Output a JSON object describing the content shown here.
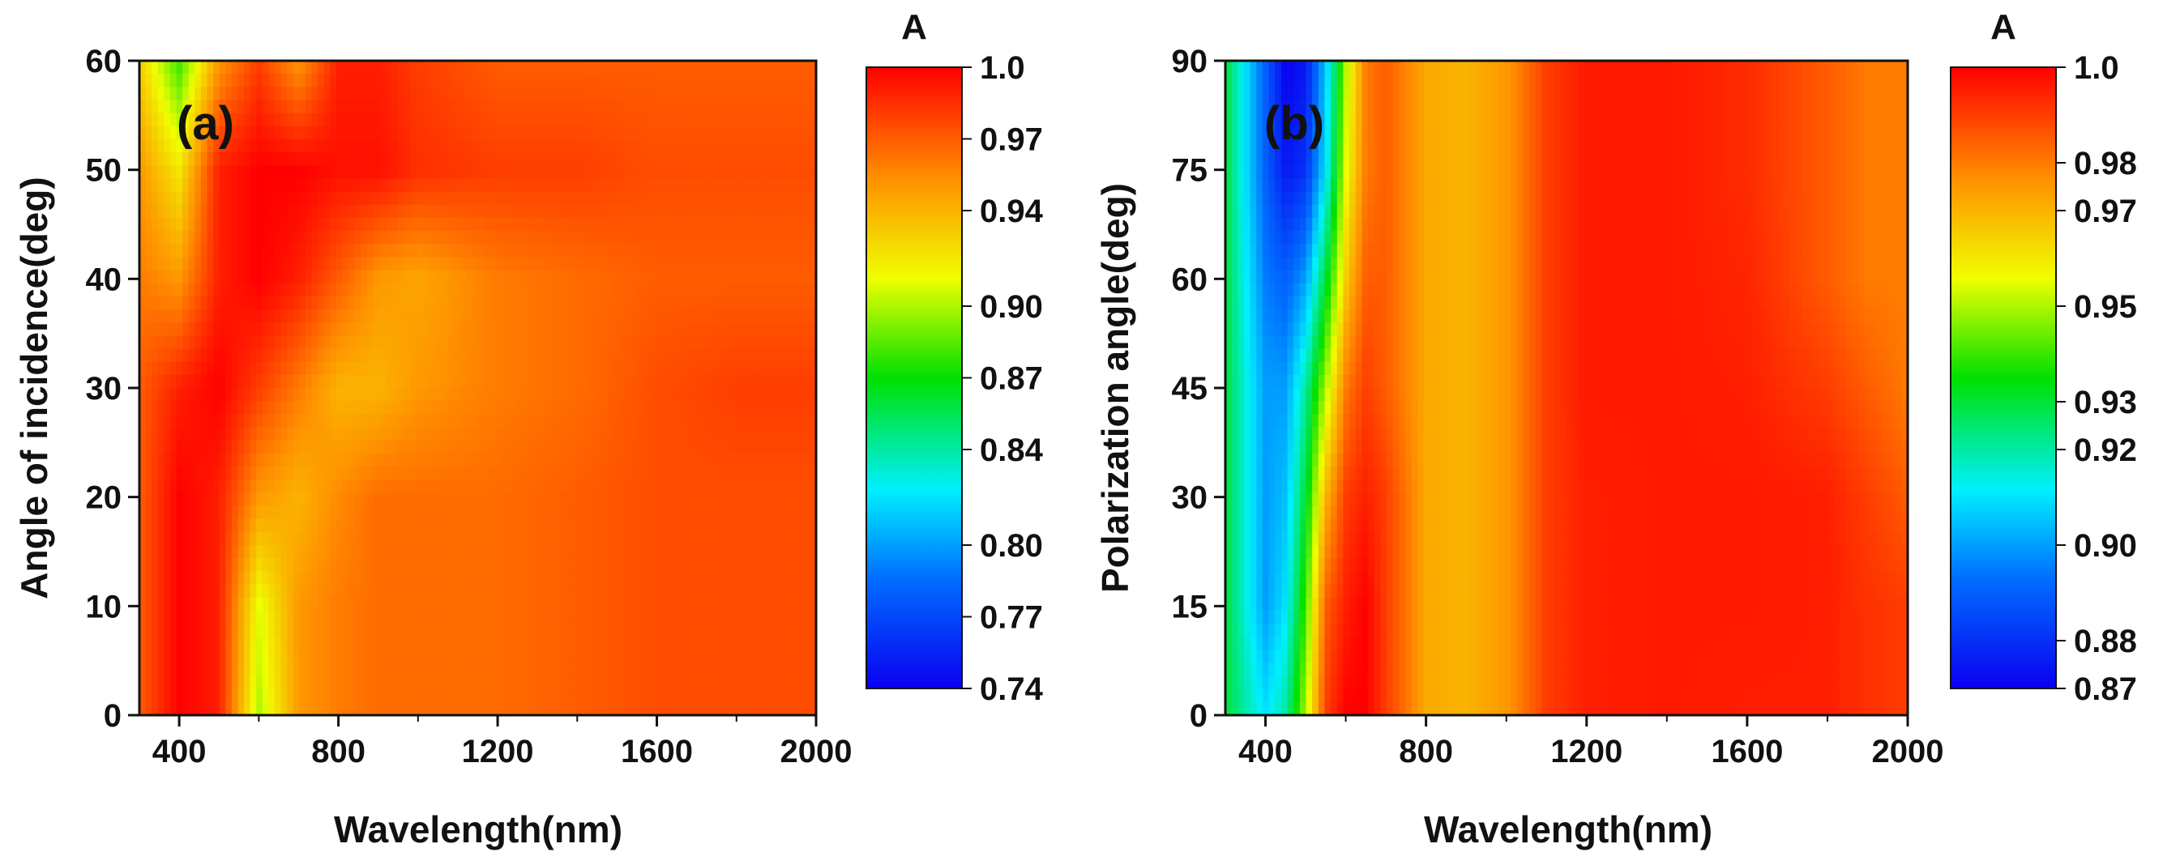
{
  "chart_data": [
    {
      "type": "heatmap",
      "panel_label": "(a)",
      "xlabel": "Wavelength(nm)",
      "ylabel": "Angle of incidence(deg)",
      "xlim": [
        300,
        2000
      ],
      "ylim": [
        0,
        60
      ],
      "x_ticks": [
        400,
        800,
        1200,
        1600,
        2000
      ],
      "x_tick_labels": [
        "400",
        "800",
        "1200",
        "1600",
        "2000"
      ],
      "y_ticks": [
        0,
        10,
        20,
        30,
        40,
        50,
        60
      ],
      "y_tick_labels": [
        "0",
        "10",
        "20",
        "30",
        "40",
        "50",
        "60"
      ],
      "colorbar": {
        "title": "A",
        "min": 0.74,
        "max": 1.0,
        "tick_values": [
          1.0,
          0.97,
          0.94,
          0.9,
          0.87,
          0.84,
          0.8,
          0.77,
          0.74
        ],
        "tick_labels": [
          "1.0",
          "0.97",
          "0.94",
          "0.90",
          "0.87",
          "0.84",
          "0.80",
          "0.77",
          "0.74"
        ]
      },
      "wavelength": [
        300,
        400,
        500,
        600,
        700,
        800,
        900,
        1000,
        1200,
        1400,
        1600,
        1800,
        2000
      ],
      "angle": [
        0,
        10,
        20,
        30,
        40,
        50,
        60
      ],
      "values": [
        [
          0.97,
          1.0,
          0.99,
          0.9,
          0.95,
          0.96,
          0.965,
          0.965,
          0.965,
          0.97,
          0.975,
          0.975,
          0.975
        ],
        [
          0.97,
          1.0,
          0.99,
          0.91,
          0.95,
          0.96,
          0.965,
          0.965,
          0.965,
          0.97,
          0.975,
          0.975,
          0.975
        ],
        [
          0.97,
          1.0,
          0.99,
          0.95,
          0.94,
          0.955,
          0.965,
          0.965,
          0.965,
          0.97,
          0.975,
          0.975,
          0.975
        ],
        [
          0.97,
          0.99,
          1.0,
          0.98,
          0.96,
          0.94,
          0.94,
          0.95,
          0.96,
          0.965,
          0.975,
          0.98,
          0.98
        ],
        [
          0.96,
          0.95,
          0.99,
          1.0,
          0.99,
          0.97,
          0.95,
          0.945,
          0.96,
          0.965,
          0.97,
          0.97,
          0.97
        ],
        [
          0.95,
          0.92,
          0.99,
          1.0,
          1.0,
          0.995,
          0.995,
          0.985,
          0.98,
          0.98,
          0.975,
          0.975,
          0.975
        ],
        [
          0.93,
          0.88,
          0.95,
          0.98,
          0.95,
          0.99,
          0.99,
          0.98,
          0.97,
          0.97,
          0.97,
          0.97,
          0.97
        ]
      ]
    },
    {
      "type": "heatmap",
      "panel_label": "(b)",
      "xlabel": "Wavelength(nm)",
      "ylabel": "Polarization angle(deg)",
      "xlim": [
        300,
        2000
      ],
      "ylim": [
        0,
        90
      ],
      "x_ticks": [
        400,
        800,
        1200,
        1600,
        2000
      ],
      "x_tick_labels": [
        "400",
        "800",
        "1200",
        "1600",
        "2000"
      ],
      "y_ticks": [
        0,
        15,
        30,
        45,
        60,
        75,
        90
      ],
      "y_tick_labels": [
        "0",
        "15",
        "30",
        "45",
        "60",
        "75",
        "90"
      ],
      "colorbar": {
        "title": "A",
        "min": 0.87,
        "max": 1.0,
        "tick_values": [
          1.0,
          0.98,
          0.97,
          0.95,
          0.93,
          0.92,
          0.9,
          0.88,
          0.87
        ],
        "tick_labels": [
          "1.0",
          "0.98",
          "0.97",
          "0.95",
          "0.93",
          "0.92",
          "0.90",
          "0.88",
          "0.87"
        ]
      },
      "wavelength": [
        300,
        400,
        450,
        500,
        550,
        600,
        650,
        700,
        800,
        900,
        1000,
        1100,
        1200,
        1400,
        1600,
        1800,
        1900,
        2000
      ],
      "angle": [
        0,
        15,
        30,
        45,
        60,
        75,
        90
      ],
      "values": [
        [
          0.93,
          0.91,
          0.92,
          0.95,
          0.99,
          1.0,
          1.0,
          0.99,
          0.972,
          0.97,
          0.975,
          0.99,
          0.995,
          0.996,
          0.995,
          0.995,
          0.992,
          0.99
        ],
        [
          0.93,
          0.9,
          0.91,
          0.94,
          0.985,
          0.995,
          1.0,
          0.99,
          0.972,
          0.97,
          0.975,
          0.99,
          0.995,
          0.996,
          0.996,
          0.995,
          0.992,
          0.99
        ],
        [
          0.93,
          0.9,
          0.905,
          0.93,
          0.97,
          0.99,
          0.995,
          0.99,
          0.972,
          0.97,
          0.975,
          0.99,
          0.995,
          0.996,
          0.996,
          0.995,
          0.99,
          0.985
        ],
        [
          0.93,
          0.9,
          0.9,
          0.92,
          0.95,
          0.98,
          0.99,
          0.985,
          0.972,
          0.97,
          0.975,
          0.99,
          0.996,
          0.996,
          0.995,
          0.99,
          0.985,
          0.98
        ],
        [
          0.93,
          0.895,
          0.89,
          0.9,
          0.93,
          0.965,
          0.985,
          0.985,
          0.972,
          0.97,
          0.975,
          0.99,
          0.996,
          0.996,
          0.994,
          0.985,
          0.98,
          0.98
        ],
        [
          0.93,
          0.89,
          0.875,
          0.88,
          0.91,
          0.955,
          0.98,
          0.985,
          0.972,
          0.97,
          0.975,
          0.99,
          0.996,
          0.996,
          0.993,
          0.985,
          0.98,
          0.98
        ],
        [
          0.93,
          0.89,
          0.87,
          0.875,
          0.905,
          0.95,
          0.98,
          0.985,
          0.972,
          0.97,
          0.975,
          0.99,
          0.996,
          0.996,
          0.993,
          0.985,
          0.98,
          0.98
        ]
      ]
    }
  ]
}
